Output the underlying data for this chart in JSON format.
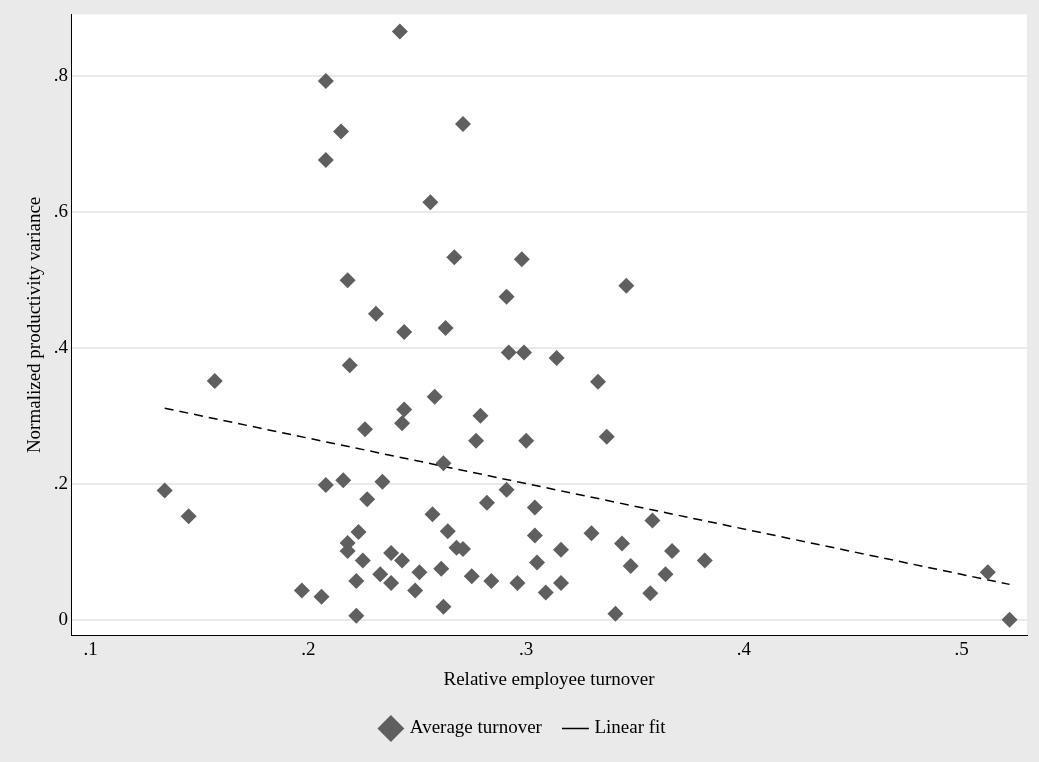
{
  "chart_data": {
    "type": "scatter",
    "xlabel": "Relative employee turnover",
    "ylabel": "Normalized productivity variance",
    "xlim": [
      0.091,
      0.53
    ],
    "ylim": [
      -0.023,
      0.89
    ],
    "xticks": [
      {
        "value": 0.1,
        "label": ".1"
      },
      {
        "value": 0.2,
        "label": ".2"
      },
      {
        "value": 0.3,
        "label": ".3"
      },
      {
        "value": 0.4,
        "label": ".4"
      },
      {
        "value": 0.5,
        "label": ".5"
      }
    ],
    "yticks": [
      {
        "value": 0,
        "label": "0"
      },
      {
        "value": 0.2,
        "label": ".2"
      },
      {
        "value": 0.4,
        "label": ".4"
      },
      {
        "value": 0.6,
        "label": ".6"
      },
      {
        "value": 0.8,
        "label": ".8"
      }
    ],
    "grid": "y",
    "legend": "bottom",
    "series": [
      {
        "name": "Average turnover",
        "marker": "diamond",
        "color": "#5f5f5f",
        "x": [
          0.208,
          0.215,
          0.271,
          0.208,
          0.242,
          0.256,
          0.267,
          0.298,
          0.218,
          0.291,
          0.231,
          0.244,
          0.263,
          0.292,
          0.299,
          0.219,
          0.157,
          0.258,
          0.244,
          0.243,
          0.226,
          0.279,
          0.277,
          0.3,
          0.262,
          0.208,
          0.216,
          0.234,
          0.227,
          0.257,
          0.264,
          0.223,
          0.218,
          0.218,
          0.225,
          0.238,
          0.243,
          0.251,
          0.261,
          0.222,
          0.233,
          0.238,
          0.249,
          0.197,
          0.206,
          0.262,
          0.222,
          0.268,
          0.291,
          0.282,
          0.304,
          0.271,
          0.304,
          0.33,
          0.344,
          0.358,
          0.367,
          0.382,
          0.316,
          0.305,
          0.348,
          0.364,
          0.275,
          0.284,
          0.296,
          0.309,
          0.316,
          0.357,
          0.341,
          0.134,
          0.145,
          0.512,
          0.522,
          0.314,
          0.333,
          0.337,
          0.346
        ],
        "values": [
          0.792,
          0.718,
          0.729,
          0.676,
          0.865,
          0.614,
          0.533,
          0.53,
          0.499,
          0.475,
          0.45,
          0.423,
          0.429,
          0.393,
          0.393,
          0.374,
          0.351,
          0.328,
          0.309,
          0.289,
          0.28,
          0.3,
          0.263,
          0.263,
          0.23,
          0.198,
          0.205,
          0.203,
          0.177,
          0.155,
          0.13,
          0.129,
          0.113,
          0.101,
          0.087,
          0.098,
          0.087,
          0.07,
          0.075,
          0.057,
          0.067,
          0.054,
          0.043,
          0.043,
          0.034,
          0.019,
          0.006,
          0.106,
          0.191,
          0.172,
          0.165,
          0.104,
          0.124,
          0.127,
          0.112,
          0.146,
          0.101,
          0.087,
          0.103,
          0.084,
          0.079,
          0.067,
          0.064,
          0.057,
          0.054,
          0.04,
          0.054,
          0.039,
          0.009,
          0.19,
          0.152,
          0.07,
          0,
          0.385,
          0.35,
          0.269,
          0.491
        ]
      },
      {
        "name": "Linear fit",
        "type": "line",
        "marker": "none",
        "line_style": "dashed",
        "color": "#000000",
        "x": [
          0.134,
          0.522
        ],
        "values": [
          0.311,
          0.052
        ]
      }
    ]
  }
}
